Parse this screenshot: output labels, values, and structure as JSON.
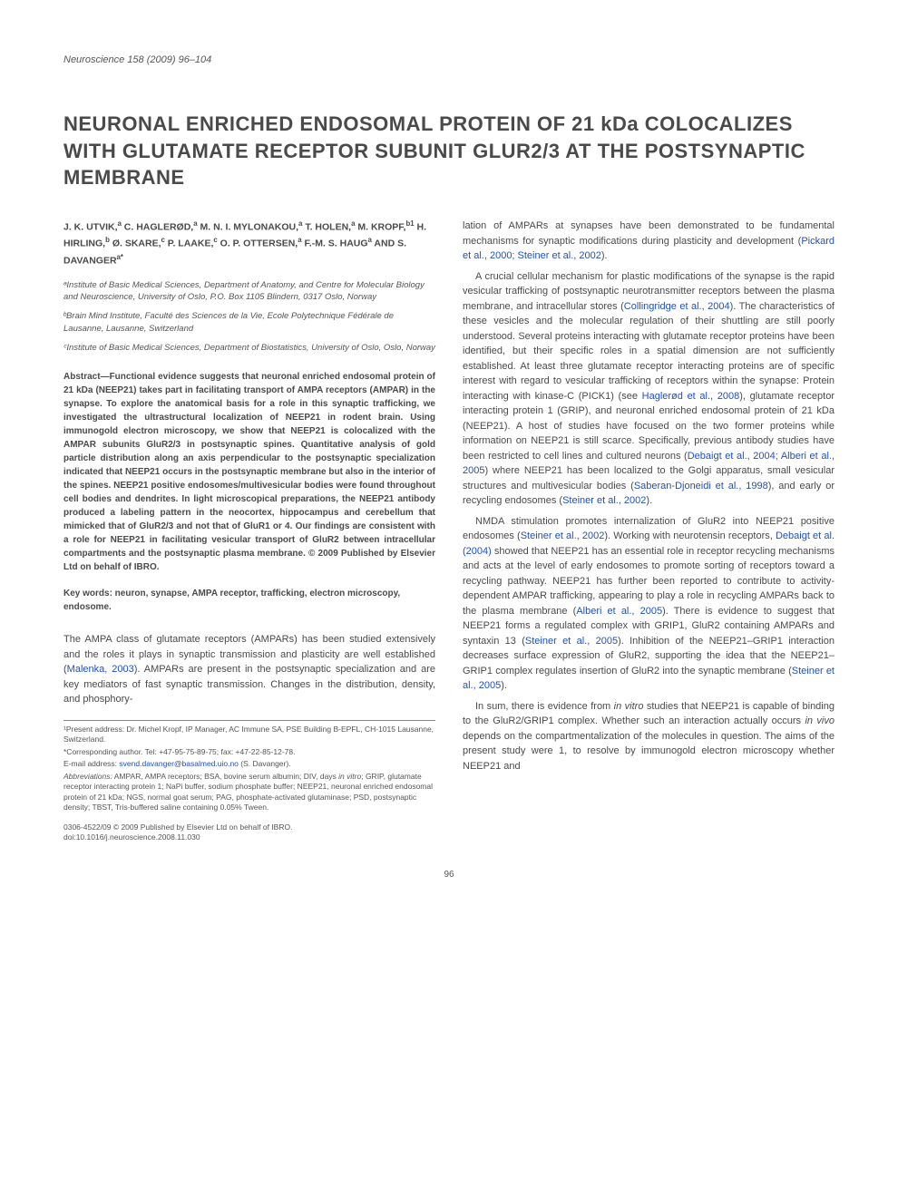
{
  "journal_header": "Neuroscience 158 (2009) 96–104",
  "title": "NEURONAL ENRICHED ENDOSOMAL PROTEIN OF 21 kDa COLOCALIZES WITH GLUTAMATE RECEPTOR SUBUNIT GLUR2/3 AT THE POSTSYNAPTIC MEMBRANE",
  "authors_html": "J. K. UTVIK,<sup>a</sup> C. HAGLERØD,<sup>a</sup> M. N. I. MYLONAKOU,<sup>a</sup> T. HOLEN,<sup>a</sup> M. KROPF,<sup>b1</sup> H. HIRLING,<sup>b</sup> Ø. SKARE,<sup>c</sup> P. LAAKE,<sup>c</sup> O. P. OTTERSEN,<sup>a</sup> F.-M. S. HAUG<sup>a</sup> AND S. DAVANGER<sup>a*</sup>",
  "affiliations": [
    "ᵃInstitute of Basic Medical Sciences, Department of Anatomy, and Centre for Molecular Biology and Neuroscience, University of Oslo, P.O. Box 1105 Blindern, 0317 Oslo, Norway",
    "ᵇBrain Mind Institute, Faculté des Sciences de la Vie, Ecole Polytechnique Fédérale de Lausanne, Lausanne, Switzerland",
    "ᶜInstitute of Basic Medical Sciences, Department of Biostatistics, University of Oslo, Oslo, Norway"
  ],
  "abstract": "Abstract—Functional evidence suggests that neuronal enriched endosomal protein of 21 kDa (NEEP21) takes part in facilitating transport of AMPA receptors (AMPAR) in the synapse. To explore the anatomical basis for a role in this synaptic trafficking, we investigated the ultrastructural localization of NEEP21 in rodent brain. Using immunogold electron microscopy, we show that NEEP21 is colocalized with the AMPAR subunits GluR2/3 in postsynaptic spines. Quantitative analysis of gold particle distribution along an axis perpendicular to the postsynaptic specialization indicated that NEEP21 occurs in the postsynaptic membrane but also in the interior of the spines. NEEP21 positive endosomes/multivesicular bodies were found throughout cell bodies and dendrites. In light microscopical preparations, the NEEP21 antibody produced a labeling pattern in the neocortex, hippocampus and cerebellum that mimicked that of GluR2/3 and not that of GluR1 or 4. Our findings are consistent with a role for NEEP21 in facilitating vesicular transport of GluR2 between intracellular compartments and the postsynaptic plasma membrane. © 2009 Published by Elsevier Ltd on behalf of IBRO.",
  "keywords": "Key words: neuron, synapse, AMPA receptor, trafficking, electron microscopy, endosome.",
  "col1_body": "The AMPA class of glutamate receptors (AMPARs) has been studied extensively and the roles it plays in synaptic transmission and plasticity are well established (<span class=\"link\">Malenka, 2003</span>). AMPARs are present in the postsynaptic specialization and are key mediators of fast synaptic transmission. Changes in the distribution, density, and phosphory-",
  "footnote1": "¹Present address: Dr. Michel Kropf, IP Manager, AC Immune SA, PSE Building B-EPFL, CH-1015 Lausanne, Switzerland.",
  "footnote2": "*Corresponding author. Tel: +47-95-75-89-75; fax: +47-22-85-12-78.",
  "footnote3_html": "E-mail address: <span class=\"link\">svend.davanger@basalmed.uio.no</span> (S. Davanger).",
  "footnote4_html": "<i>Abbreviations:</i> AMPAR, AMPA receptors; BSA, bovine serum albumin; DIV, days <i>in vitro</i>; GRIP, glutamate receptor interacting protein 1; NaPi buffer, sodium phosphate buffer; NEEP21, neuronal enriched endosomal protein of 21 kDa; NGS, normal goat serum; PAG, phosphate-activated glutaminase; PSD, postsynaptic density; TBST, Tris-buffered saline containing 0.05% Tween.",
  "doi1": "0306-4522/09 © 2009 Published by Elsevier Ltd on behalf of IBRO.",
  "doi2": "doi:10.1016/j.neuroscience.2008.11.030",
  "col2_p1_html": "lation of AMPARs at synapses have been demonstrated to be fundamental mechanisms for synaptic modifications during plasticity and development (<span class=\"link\">Pickard et al., 2000; Steiner et al., 2002</span>).",
  "col2_p2_html": "A crucial cellular mechanism for plastic modifications of the synapse is the rapid vesicular trafficking of postsynaptic neurotransmitter receptors between the plasma membrane, and intracellular stores (<span class=\"link\">Collingridge et al., 2004</span>). The characteristics of these vesicles and the molecular regulation of their shuttling are still poorly understood. Several proteins interacting with glutamate receptor proteins have been identified, but their specific roles in a spatial dimension are not sufficiently established. At least three glutamate receptor interacting proteins are of specific interest with regard to vesicular trafficking of receptors within the synapse: Protein interacting with kinase-C (PICK1) (see <span class=\"link\">Haglerød et al., 2008</span>), glutamate receptor interacting protein 1 (GRIP), and neuronal enriched endosomal protein of 21 kDa (NEEP21). A host of studies have focused on the two former proteins while information on NEEP21 is still scarce. Specifically, previous antibody studies have been restricted to cell lines and cultured neurons (<span class=\"link\">Debaigt et al., 2004; Alberi et al., 2005</span>) where NEEP21 has been localized to the Golgi apparatus, small vesicular structures and multivesicular bodies (<span class=\"link\">Saberan-Djoneidi et al., 1998</span>), and early or recycling endosomes (<span class=\"link\">Steiner et al., 2002</span>).",
  "col2_p3_html": "NMDA stimulation promotes internalization of GluR2 into NEEP21 positive endosomes (<span class=\"link\">Steiner et al., 2002</span>). Working with neurotensin receptors, <span class=\"link\">Debaigt et al. (2004)</span> showed that NEEP21 has an essential role in receptor recycling mechanisms and acts at the level of early endosomes to promote sorting of receptors toward a recycling pathway. NEEP21 has further been reported to contribute to activity-dependent AMPAR trafficking, appearing to play a role in recycling AMPARs back to the plasma membrane (<span class=\"link\">Alberi et al., 2005</span>). There is evidence to suggest that NEEP21 forms a regulated complex with GRIP1, GluR2 containing AMPARs and syntaxin 13 (<span class=\"link\">Steiner et al., 2005</span>). Inhibition of the NEEP21–GRIP1 interaction decreases surface expression of GluR2, supporting the idea that the NEEP21–GRIP1 complex regulates insertion of GluR2 into the synaptic membrane (<span class=\"link\">Steiner et al., 2005</span>).",
  "col2_p4_html": "In sum, there is evidence from <i>in vitro</i> studies that NEEP21 is capable of binding to the GluR2/GRIP1 complex. Whether such an interaction actually occurs <i>in vivo</i> depends on the compartmentalization of the molecules in question. The aims of the present study were 1, to resolve by immunogold electron microscopy whether NEEP21 and",
  "page_number": "96"
}
